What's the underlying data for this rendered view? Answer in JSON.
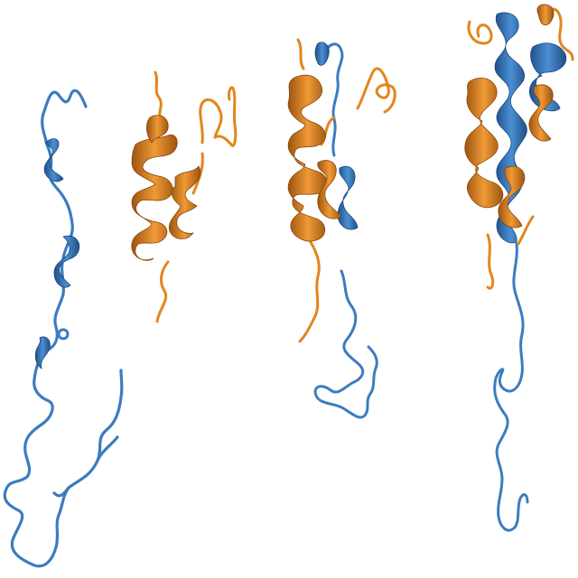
{
  "colors": {
    "background": "#ffffff",
    "chain_a": "#3b7cc0",
    "chain_a_dark": "#214f86",
    "chain_b": "#e2861e",
    "chain_b_dark": "#9c5410"
  },
  "panels": [
    {
      "name": "blue-chain-alone",
      "chains": [
        "chain_a"
      ]
    },
    {
      "name": "orange-chain-alone",
      "chains": [
        "chain_b"
      ]
    },
    {
      "name": "complex-view-1",
      "chains": [
        "chain_a",
        "chain_b"
      ]
    },
    {
      "name": "complex-view-2",
      "chains": [
        "chain_a",
        "chain_b"
      ]
    }
  ]
}
